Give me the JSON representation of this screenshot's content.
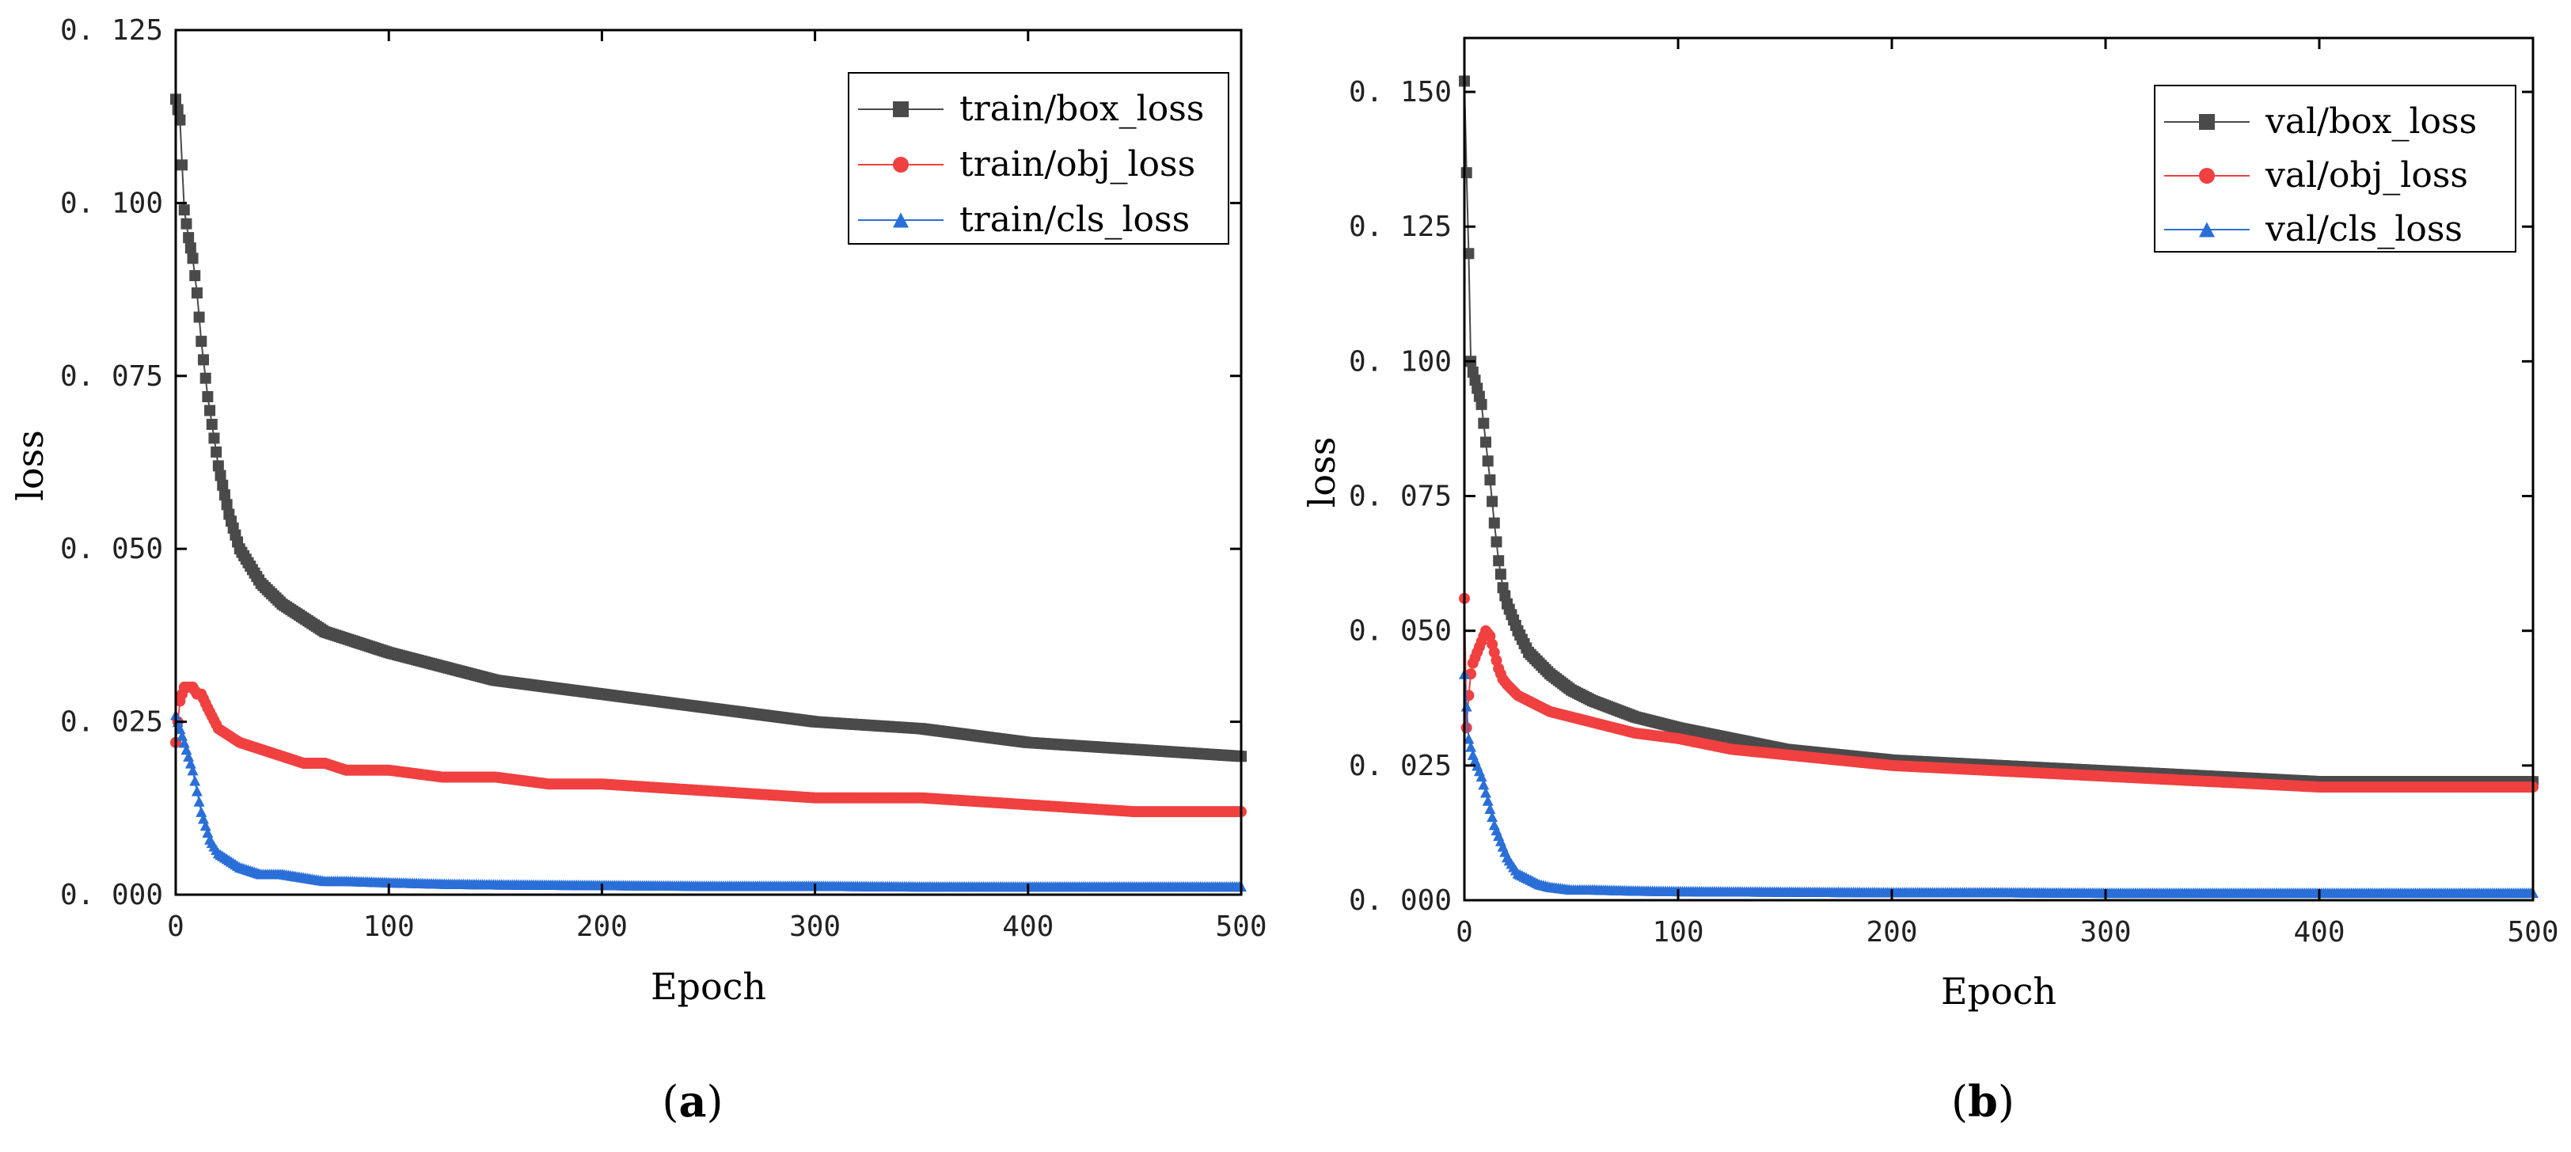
{
  "chart_data": [
    {
      "type": "line",
      "panel_label": "a",
      "xlabel": "Epoch",
      "ylabel": "loss",
      "xlim": [
        0,
        500
      ],
      "ylim": [
        0,
        0.125
      ],
      "xticks": [
        0,
        100,
        200,
        300,
        400,
        500
      ],
      "yticks": [
        0.0,
        0.025,
        0.05,
        0.075,
        0.1,
        0.125
      ],
      "ytick_labels": [
        "0. 000",
        "0. 025",
        "0. 050",
        "0. 075",
        "0. 100",
        "0. 125"
      ],
      "xtick_labels": [
        "0",
        "100",
        "200",
        "300",
        "400",
        "500"
      ],
      "legend_position": "top-right",
      "series": [
        {
          "name": "train/box_loss",
          "color": "#4a4a4a",
          "marker": "square",
          "x": [
            0,
            2,
            4,
            6,
            8,
            10,
            12,
            15,
            20,
            25,
            30,
            40,
            50,
            60,
            70,
            80,
            100,
            125,
            150,
            175,
            200,
            250,
            300,
            350,
            400,
            450,
            500
          ],
          "y": [
            0.115,
            0.112,
            0.099,
            0.095,
            0.092,
            0.087,
            0.08,
            0.072,
            0.062,
            0.055,
            0.05,
            0.045,
            0.042,
            0.04,
            0.038,
            0.037,
            0.035,
            0.033,
            0.031,
            0.03,
            0.029,
            0.027,
            0.025,
            0.024,
            0.022,
            0.021,
            0.02
          ]
        },
        {
          "name": "train/obj_loss",
          "color": "#f04040",
          "marker": "circle",
          "x": [
            0,
            2,
            4,
            6,
            8,
            10,
            12,
            15,
            20,
            25,
            30,
            40,
            50,
            60,
            70,
            80,
            100,
            125,
            150,
            175,
            200,
            250,
            300,
            350,
            400,
            450,
            500
          ],
          "y": [
            0.022,
            0.028,
            0.03,
            0.03,
            0.03,
            0.029,
            0.029,
            0.027,
            0.024,
            0.023,
            0.022,
            0.021,
            0.02,
            0.019,
            0.019,
            0.018,
            0.018,
            0.017,
            0.017,
            0.016,
            0.016,
            0.015,
            0.014,
            0.014,
            0.013,
            0.012,
            0.012
          ]
        },
        {
          "name": "train/cls_loss",
          "color": "#2a6fd8",
          "marker": "triangle",
          "x": [
            0,
            2,
            4,
            6,
            8,
            10,
            12,
            14,
            16,
            18,
            20,
            25,
            30,
            40,
            50,
            60,
            70,
            80,
            100,
            125,
            150,
            200,
            250,
            300,
            350,
            400,
            450,
            500
          ],
          "y": [
            0.026,
            0.024,
            0.022,
            0.02,
            0.018,
            0.015,
            0.012,
            0.01,
            0.008,
            0.007,
            0.006,
            0.005,
            0.004,
            0.003,
            0.003,
            0.0025,
            0.002,
            0.002,
            0.0018,
            0.0016,
            0.0015,
            0.0014,
            0.0013,
            0.0013,
            0.0012,
            0.0012,
            0.0012,
            0.0012
          ]
        }
      ]
    },
    {
      "type": "line",
      "panel_label": "b",
      "xlabel": "Epoch",
      "ylabel": "loss",
      "xlim": [
        0,
        500
      ],
      "ylim": [
        0,
        0.16
      ],
      "xticks": [
        0,
        100,
        200,
        300,
        400,
        500
      ],
      "yticks": [
        0.0,
        0.025,
        0.05,
        0.075,
        0.1,
        0.125,
        0.15
      ],
      "ytick_labels": [
        "0. 000",
        "0. 025",
        "0. 050",
        "0. 075",
        "0. 100",
        "0. 125",
        "0. 150"
      ],
      "xtick_labels": [
        "0",
        "100",
        "200",
        "300",
        "400",
        "500"
      ],
      "legend_position": "top-right",
      "series": [
        {
          "name": "val/box_loss",
          "color": "#4a4a4a",
          "marker": "square",
          "x": [
            0,
            1,
            2,
            3,
            4,
            6,
            8,
            10,
            12,
            14,
            16,
            18,
            20,
            25,
            30,
            40,
            50,
            60,
            80,
            100,
            125,
            150,
            200,
            250,
            300,
            350,
            400,
            450,
            500
          ],
          "y": [
            0.152,
            0.135,
            0.12,
            0.1,
            0.098,
            0.095,
            0.092,
            0.085,
            0.078,
            0.07,
            0.063,
            0.058,
            0.055,
            0.05,
            0.046,
            0.042,
            0.039,
            0.037,
            0.034,
            0.032,
            0.03,
            0.028,
            0.026,
            0.025,
            0.024,
            0.023,
            0.022,
            0.022,
            0.022
          ]
        },
        {
          "name": "val/obj_loss",
          "color": "#f04040",
          "marker": "circle",
          "x": [
            0,
            1,
            2,
            3,
            4,
            6,
            8,
            10,
            12,
            14,
            16,
            18,
            20,
            25,
            30,
            40,
            50,
            60,
            80,
            100,
            125,
            150,
            200,
            250,
            300,
            350,
            400,
            450,
            500
          ],
          "y": [
            0.056,
            0.032,
            0.038,
            0.042,
            0.044,
            0.046,
            0.048,
            0.05,
            0.049,
            0.046,
            0.043,
            0.041,
            0.04,
            0.038,
            0.037,
            0.035,
            0.034,
            0.033,
            0.031,
            0.03,
            0.028,
            0.027,
            0.025,
            0.024,
            0.023,
            0.022,
            0.021,
            0.021,
            0.021
          ]
        },
        {
          "name": "val/cls_loss",
          "color": "#2a6fd8",
          "marker": "triangle",
          "x": [
            0,
            2,
            4,
            6,
            8,
            10,
            12,
            14,
            16,
            18,
            20,
            25,
            30,
            35,
            40,
            50,
            60,
            80,
            100,
            150,
            200,
            250,
            300,
            350,
            400,
            450,
            500
          ],
          "y": [
            0.042,
            0.03,
            0.027,
            0.025,
            0.023,
            0.02,
            0.017,
            0.014,
            0.012,
            0.01,
            0.008,
            0.005,
            0.004,
            0.003,
            0.0025,
            0.002,
            0.002,
            0.0018,
            0.0017,
            0.0016,
            0.0015,
            0.0015,
            0.0014,
            0.0014,
            0.0014,
            0.0014,
            0.0014
          ]
        }
      ]
    }
  ]
}
